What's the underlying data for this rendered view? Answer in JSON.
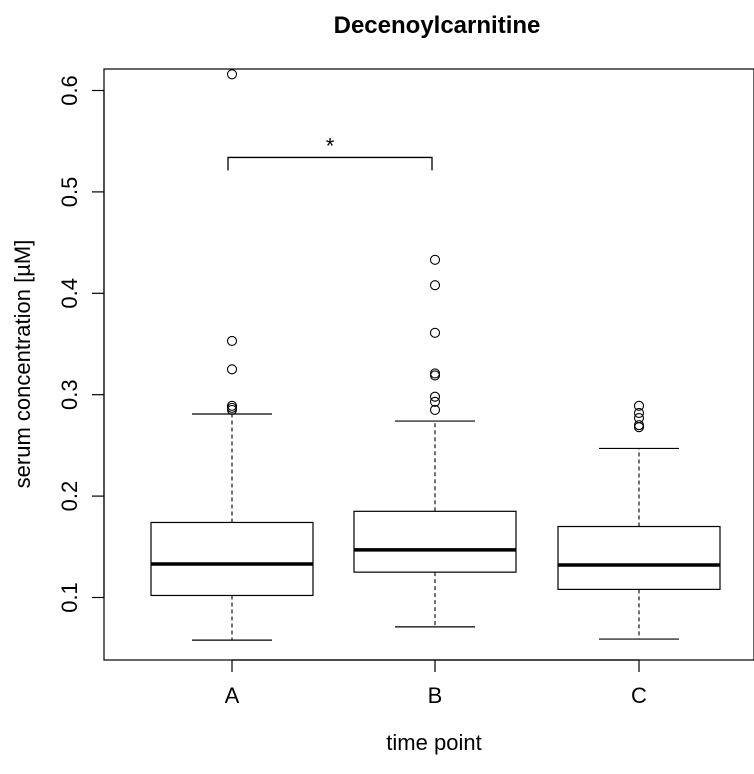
{
  "chart_data": {
    "type": "boxplot",
    "title": "Decenoylcarnitine",
    "xlabel": "time point",
    "ylabel": "serum concentration [µM]",
    "categories": [
      "A",
      "B",
      "C"
    ],
    "ylim": [
      0.04,
      0.64
    ],
    "yticks": [
      "0.1",
      "0.2",
      "0.3",
      "0.4",
      "0.5",
      "0.6"
    ],
    "boxes": [
      {
        "name": "A",
        "whisker_low": 0.058,
        "q1": 0.102,
        "median": 0.133,
        "q3": 0.174,
        "whisker_high": 0.281,
        "outliers": [
          0.285,
          0.287,
          0.289,
          0.325,
          0.353,
          0.616
        ]
      },
      {
        "name": "B",
        "whisker_low": 0.071,
        "q1": 0.125,
        "median": 0.147,
        "q3": 0.185,
        "whisker_high": 0.274,
        "outliers": [
          0.285,
          0.293,
          0.298,
          0.319,
          0.321,
          0.361,
          0.408,
          0.433
        ]
      },
      {
        "name": "C",
        "whisker_low": 0.059,
        "q1": 0.108,
        "median": 0.132,
        "q3": 0.17,
        "whisker_high": 0.247,
        "outliers": [
          0.268,
          0.27,
          0.277,
          0.282,
          0.289
        ]
      }
    ],
    "significance": {
      "from": "A",
      "to": "B",
      "y": 0.534,
      "label": "*"
    }
  }
}
